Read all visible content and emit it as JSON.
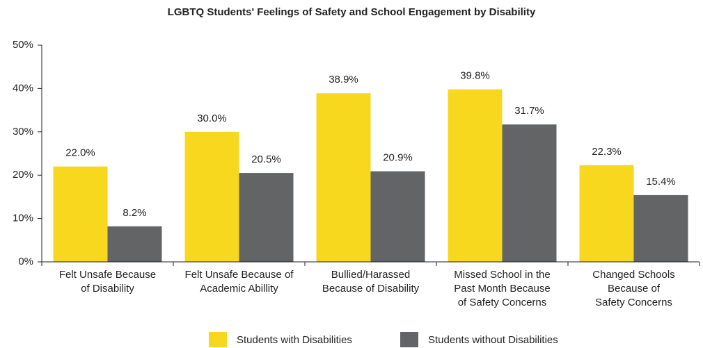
{
  "chart_data": {
    "type": "bar",
    "title": "LGBTQ Students' Feelings of Safety and School Engagement by Disability",
    "categories": [
      "Felt Unsafe Because\nof Disability",
      "Felt Unsafe Because of\nAcademic Abillity",
      "Bullied/Harassed\nBecause of Disability",
      "Missed School in the\nPast Month Because\nof Safety Concerns",
      "Changed Schools\nBecause of\nSafety Concerns"
    ],
    "series": [
      {
        "name": "Students with Disabilities",
        "color": "#f7d81e",
        "values": [
          22.0,
          30.0,
          38.9,
          39.8,
          22.3
        ],
        "value_labels": [
          "22.0%",
          "30.0%",
          "38.9%",
          "39.8%",
          "22.3%"
        ]
      },
      {
        "name": "Students without Disabilities",
        "color": "#636466",
        "values": [
          8.2,
          20.5,
          20.9,
          31.7,
          15.4
        ],
        "value_labels": [
          "8.2%",
          "20.5%",
          "20.9%",
          "31.7%",
          "15.4%"
        ]
      }
    ],
    "ylim": [
      0,
      50
    ],
    "yticks": [
      {
        "value": 0,
        "label": "0%"
      },
      {
        "value": 10,
        "label": "10%"
      },
      {
        "value": 20,
        "label": "20%"
      },
      {
        "value": 30,
        "label": "30%"
      },
      {
        "value": 40,
        "label": "40%"
      },
      {
        "value": 50,
        "label": "50%"
      }
    ]
  }
}
